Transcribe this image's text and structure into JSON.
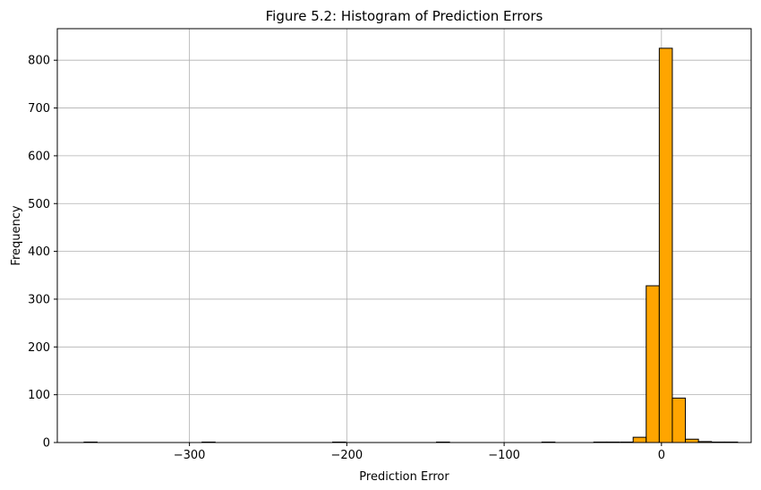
{
  "chart_data": {
    "type": "bar",
    "title": "Figure 5.2: Histogram of Prediction Errors",
    "xlabel": "Prediction Error",
    "ylabel": "Frequency",
    "xlim": [
      -384,
      57
    ],
    "ylim": [
      0,
      866
    ],
    "grid": true,
    "bar_color": "#ffa500",
    "bar_edge_color": "#000000",
    "x_ticks": [
      -300,
      -200,
      -100,
      0
    ],
    "x_tick_labels": [
      "−300",
      "−200",
      "−100",
      "0"
    ],
    "y_ticks": [
      0,
      100,
      200,
      300,
      400,
      500,
      600,
      700,
      800
    ],
    "y_tick_labels": [
      "0",
      "100",
      "200",
      "300",
      "400",
      "500",
      "600",
      "700",
      "800"
    ],
    "bin_width": 8.3,
    "bins": [
      {
        "start": -367,
        "count": 1
      },
      {
        "start": -292,
        "count": 1
      },
      {
        "start": -209,
        "count": 1
      },
      {
        "start": -143,
        "count": 1
      },
      {
        "start": -76,
        "count": 1
      },
      {
        "start": -43,
        "count": 1
      },
      {
        "start": -35,
        "count": 1
      },
      {
        "start": -26,
        "count": 1
      },
      {
        "start": -18,
        "count": 11
      },
      {
        "start": -9.7,
        "count": 328
      },
      {
        "start": -1.4,
        "count": 825
      },
      {
        "start": 6.9,
        "count": 93
      },
      {
        "start": 15.2,
        "count": 7
      },
      {
        "start": 23.5,
        "count": 2
      },
      {
        "start": 31.8,
        "count": 1
      },
      {
        "start": 40.1,
        "count": 1
      }
    ]
  }
}
